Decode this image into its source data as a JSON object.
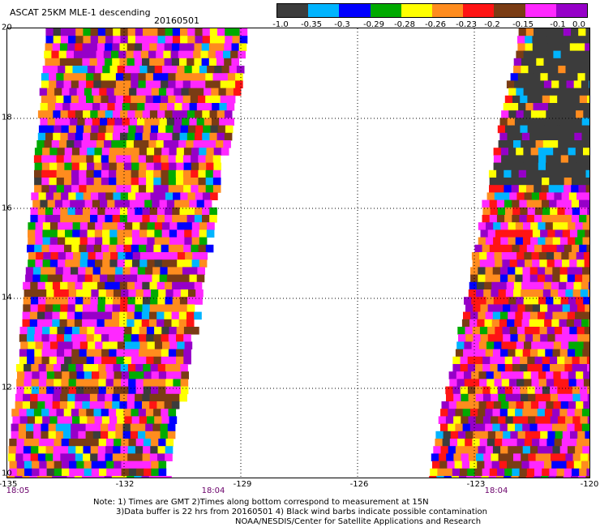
{
  "header": {
    "title": "ASCAT 25KM MLE-1 descending",
    "date": "20160501"
  },
  "legend": {
    "labels": [
      "-1.0",
      "-0.35",
      "-0.3",
      "-0.29",
      "-0.28",
      "-0.26",
      "-0.23",
      "-0.2",
      "-0.15",
      "-0.1",
      "0.0"
    ],
    "colors": [
      "#3c3c3c",
      "#00b4ff",
      "#0000ff",
      "#00aa00",
      "#ffff00",
      "#ff8c1e",
      "#ff1414",
      "#7a3c14",
      "#ff28ff",
      "#9600c8"
    ]
  },
  "axes": {
    "x_ticks": [
      "-135",
      "-132",
      "-129",
      "-126",
      "-123",
      "-120"
    ],
    "y_ticks": [
      "20",
      "18",
      "16",
      "14",
      "12",
      "10"
    ],
    "times": [
      "18:05",
      "18:04",
      "18:04"
    ]
  },
  "footer": {
    "line1": "Note: 1) Times are GMT 2)Times along bottom correspond to measurement at 15N",
    "line2": "3)Data buffer is 22 hrs from 20160501 4) Black wind barbs indicate possible contamination",
    "line3": "NOAA/NESDIS/Center for Satellite Applications and Research"
  }
}
